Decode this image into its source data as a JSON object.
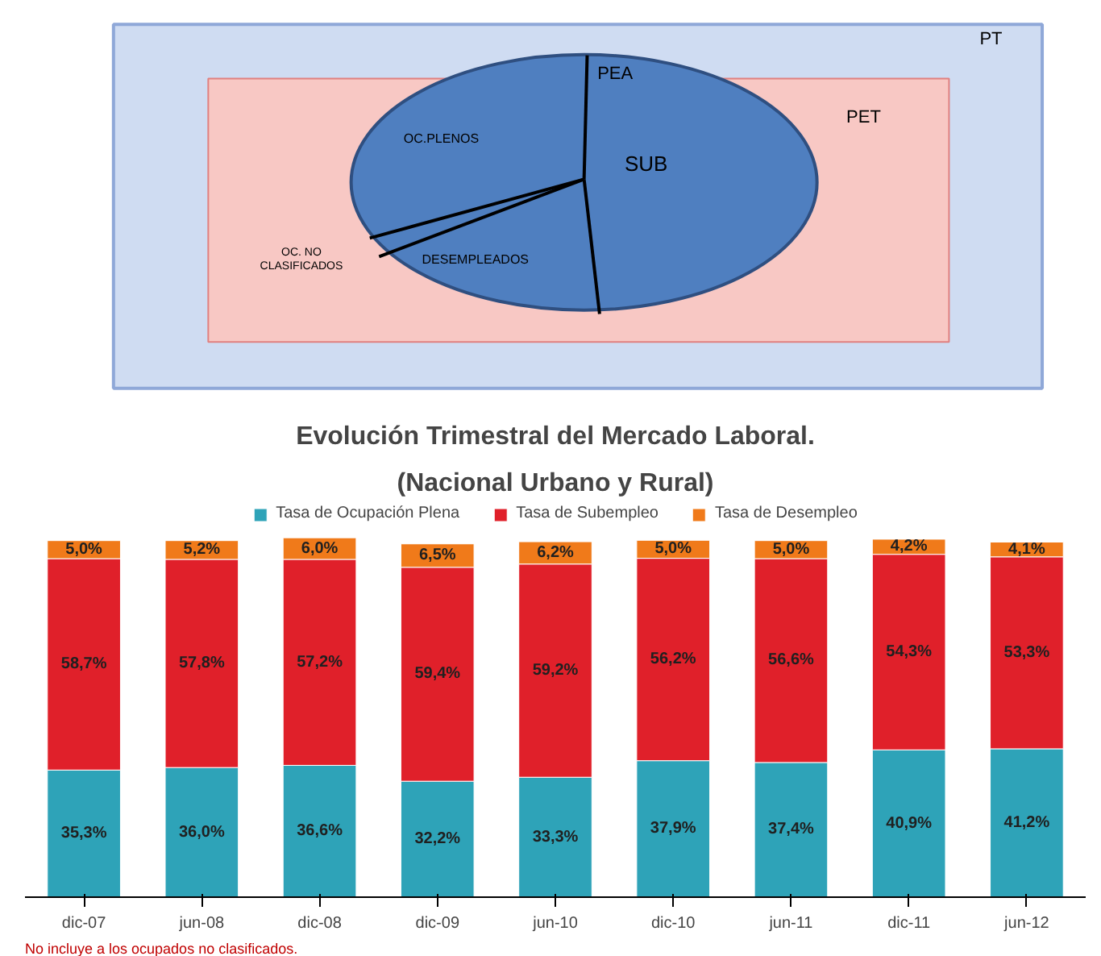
{
  "chart_data": [
    {
      "type": "other",
      "annotations": [
        "PT",
        "PET",
        "PEA",
        "SUB",
        "OC.PLENOS",
        "DESEMPLEADOS",
        "OC. NO\nCLASIFICADOS"
      ]
    },
    {
      "type": "bar",
      "title": "Evolución Trimestral del Mercado Laboral.",
      "subtitle": "(Nacional Urbano y Rural)",
      "stacked": true,
      "legend": "top",
      "categories": [
        "dic-07",
        "jun-08",
        "dic-08",
        "dic-09",
        "jun-10",
        "dic-10",
        "jun-11",
        "dic-11",
        "jun-12"
      ],
      "series": [
        {
          "name": "Tasa de Ocupación Plena",
          "color": "#2ea3b8",
          "values": [
            35.3,
            36.0,
            36.6,
            32.2,
            33.3,
            37.9,
            37.4,
            40.9,
            41.2
          ],
          "value_labels": [
            "35,3%",
            "36,0%",
            "36,6%",
            "32,2%",
            "33,3%",
            "37,9%",
            "37,4%",
            "40,9%",
            "41,2%"
          ]
        },
        {
          "name": "Tasa de Subempleo",
          "color": "#e0202a",
          "values": [
            58.7,
            57.8,
            57.2,
            59.4,
            59.2,
            56.2,
            56.6,
            54.3,
            53.3
          ],
          "value_labels": [
            "58,7%",
            "57,8%",
            "57,2%",
            "59,4%",
            "59,2%",
            "56,2%",
            "56,6%",
            "54,3%",
            "53,3%"
          ]
        },
        {
          "name": "Tasa de Desempleo",
          "color": "#f07a1a",
          "values": [
            5.0,
            5.2,
            6.0,
            6.5,
            6.2,
            5.0,
            5.0,
            4.2,
            4.1
          ],
          "value_labels": [
            "5,0%",
            "5,2%",
            "6,0%",
            "6,5%",
            "6,2%",
            "5,0%",
            "5,0%",
            "4,2%",
            "4,1%"
          ]
        }
      ],
      "annotations": [
        "No incluye a los ocupados no clasificados."
      ]
    }
  ]
}
